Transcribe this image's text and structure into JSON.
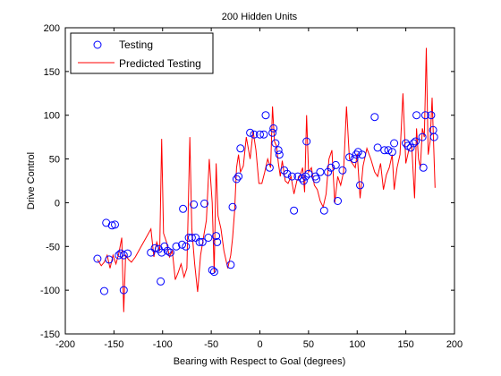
{
  "chart_data": {
    "type": "scatter",
    "title": "200 Hidden Units",
    "xlabel": "Bearing with Respect to Goal (degrees)",
    "ylabel": "Drive Control",
    "xlim": [
      -200,
      200
    ],
    "ylim": [
      -150,
      200
    ],
    "xticks": [
      "-200",
      "-150",
      "-100",
      "-50",
      "0",
      "50",
      "100",
      "150",
      "200"
    ],
    "yticks": [
      "-150",
      "-100",
      "-50",
      "0",
      "50",
      "100",
      "150",
      "200"
    ],
    "grid": false,
    "legend_position": "top-left",
    "colors": {
      "testing": "#0000ff",
      "predicted": "#ff0000"
    },
    "series": [
      {
        "name": "Testing",
        "style": "markers",
        "points": [
          [
            -167,
            -64
          ],
          [
            -160,
            -101
          ],
          [
            -158,
            -23
          ],
          [
            -155,
            -65
          ],
          [
            -152,
            -26
          ],
          [
            -149,
            -25
          ],
          [
            -145,
            -60
          ],
          [
            -143,
            -58
          ],
          [
            -140,
            -60
          ],
          [
            -140,
            -100
          ],
          [
            -136,
            -58
          ],
          [
            -112,
            -57
          ],
          [
            -108,
            -52
          ],
          [
            -104,
            -53
          ],
          [
            -102,
            -90
          ],
          [
            -101,
            -57
          ],
          [
            -98,
            -50
          ],
          [
            -95,
            -55
          ],
          [
            -92,
            -57
          ],
          [
            -86,
            -50
          ],
          [
            -80,
            -48
          ],
          [
            -79,
            -7
          ],
          [
            -76,
            -50
          ],
          [
            -73,
            -40
          ],
          [
            -70,
            -40
          ],
          [
            -68,
            -2
          ],
          [
            -66,
            -40
          ],
          [
            -62,
            -45
          ],
          [
            -59,
            -45
          ],
          [
            -57,
            -1
          ],
          [
            -53,
            -40
          ],
          [
            -49,
            -77
          ],
          [
            -47,
            -79
          ],
          [
            -45,
            -38
          ],
          [
            -44,
            -45
          ],
          [
            -30,
            -71
          ],
          [
            -28,
            -5
          ],
          [
            -24,
            27
          ],
          [
            -22,
            30
          ],
          [
            -20,
            62
          ],
          [
            -10,
            80
          ],
          [
            -6,
            78
          ],
          [
            0,
            78
          ],
          [
            4,
            78
          ],
          [
            6,
            100
          ],
          [
            10,
            40
          ],
          [
            13,
            80
          ],
          [
            14,
            85
          ],
          [
            16,
            68
          ],
          [
            19,
            60
          ],
          [
            20,
            55
          ],
          [
            25,
            37
          ],
          [
            28,
            33
          ],
          [
            33,
            30
          ],
          [
            35,
            -9
          ],
          [
            39,
            30
          ],
          [
            43,
            28
          ],
          [
            45,
            25
          ],
          [
            47,
            30
          ],
          [
            48,
            70
          ],
          [
            50,
            33
          ],
          [
            57,
            30
          ],
          [
            58,
            27
          ],
          [
            62,
            35
          ],
          [
            66,
            -9
          ],
          [
            70,
            35
          ],
          [
            73,
            40
          ],
          [
            78,
            43
          ],
          [
            80,
            2
          ],
          [
            85,
            37
          ],
          [
            92,
            52
          ],
          [
            97,
            50
          ],
          [
            99,
            55
          ],
          [
            101,
            58
          ],
          [
            103,
            20
          ],
          [
            105,
            55
          ],
          [
            118,
            98
          ],
          [
            121,
            63
          ],
          [
            128,
            60
          ],
          [
            132,
            60
          ],
          [
            136,
            58
          ],
          [
            138,
            68
          ],
          [
            150,
            68
          ],
          [
            152,
            65
          ],
          [
            155,
            63
          ],
          [
            158,
            68
          ],
          [
            160,
            70
          ],
          [
            161,
            100
          ],
          [
            167,
            75
          ],
          [
            168,
            40
          ],
          [
            170,
            100
          ],
          [
            176,
            100
          ],
          [
            178,
            83
          ],
          [
            179,
            75
          ]
        ]
      },
      {
        "name": "Predicted Testing",
        "style": "line",
        "points": [
          [
            -167,
            -65
          ],
          [
            -163,
            -72
          ],
          [
            -160,
            -68
          ],
          [
            -157,
            -60
          ],
          [
            -154,
            -75
          ],
          [
            -151,
            -60
          ],
          [
            -148,
            -70
          ],
          [
            -145,
            -58
          ],
          [
            -142,
            -40
          ],
          [
            -140,
            -125
          ],
          [
            -138,
            -60
          ],
          [
            -135,
            -65
          ],
          [
            -132,
            -68
          ],
          [
            -128,
            -62
          ],
          [
            -122,
            -50
          ],
          [
            -117,
            -40
          ],
          [
            -112,
            -30
          ],
          [
            -109,
            -62
          ],
          [
            -106,
            -45
          ],
          [
            -103,
            -55
          ],
          [
            -101,
            73
          ],
          [
            -99,
            -35
          ],
          [
            -96,
            -45
          ],
          [
            -93,
            -62
          ],
          [
            -90,
            -55
          ],
          [
            -87,
            -88
          ],
          [
            -84,
            -80
          ],
          [
            -81,
            -70
          ],
          [
            -78,
            -85
          ],
          [
            -75,
            -75
          ],
          [
            -72,
            75
          ],
          [
            -70,
            -30
          ],
          [
            -67,
            -70
          ],
          [
            -64,
            -102
          ],
          [
            -61,
            -60
          ],
          [
            -58,
            -40
          ],
          [
            -55,
            -20
          ],
          [
            -52,
            50
          ],
          [
            -49,
            0
          ],
          [
            -47,
            -80
          ],
          [
            -45,
            45
          ],
          [
            -43,
            -15
          ],
          [
            -40,
            -30
          ],
          [
            -37,
            -55
          ],
          [
            -33,
            -75
          ],
          [
            -30,
            -60
          ],
          [
            -28,
            -40
          ],
          [
            -26,
            -10
          ],
          [
            -24,
            40
          ],
          [
            -22,
            55
          ],
          [
            -20,
            35
          ],
          [
            -17,
            42
          ],
          [
            -14,
            75
          ],
          [
            -10,
            50
          ],
          [
            -7,
            82
          ],
          [
            -4,
            60
          ],
          [
            -1,
            22
          ],
          [
            2,
            22
          ],
          [
            5,
            35
          ],
          [
            8,
            50
          ],
          [
            11,
            40
          ],
          [
            13,
            110
          ],
          [
            15,
            70
          ],
          [
            17,
            65
          ],
          [
            19,
            45
          ],
          [
            21,
            30
          ],
          [
            23,
            48
          ],
          [
            26,
            25
          ],
          [
            29,
            22
          ],
          [
            32,
            30
          ],
          [
            35,
            10
          ],
          [
            38,
            25
          ],
          [
            41,
            30
          ],
          [
            44,
            40
          ],
          [
            46,
            12
          ],
          [
            48,
            100
          ],
          [
            50,
            35
          ],
          [
            53,
            40
          ],
          [
            56,
            20
          ],
          [
            59,
            15
          ],
          [
            62,
            2
          ],
          [
            65,
            -5
          ],
          [
            68,
            10
          ],
          [
            71,
            50
          ],
          [
            74,
            60
          ],
          [
            77,
            0
          ],
          [
            80,
            30
          ],
          [
            83,
            20
          ],
          [
            86,
            35
          ],
          [
            89,
            110
          ],
          [
            92,
            50
          ],
          [
            95,
            45
          ],
          [
            98,
            40
          ],
          [
            100,
            56
          ],
          [
            103,
            5
          ],
          [
            106,
            42
          ],
          [
            110,
            62
          ],
          [
            114,
            50
          ],
          [
            118,
            35
          ],
          [
            121,
            30
          ],
          [
            124,
            45
          ],
          [
            127,
            15
          ],
          [
            130,
            32
          ],
          [
            133,
            40
          ],
          [
            136,
            55
          ],
          [
            138,
            15
          ],
          [
            141,
            40
          ],
          [
            144,
            55
          ],
          [
            147,
            125
          ],
          [
            150,
            45
          ],
          [
            153,
            60
          ],
          [
            156,
            65
          ],
          [
            159,
            5
          ],
          [
            161,
            85
          ],
          [
            163,
            50
          ],
          [
            165,
            40
          ],
          [
            167,
            85
          ],
          [
            169,
            75
          ],
          [
            171,
            177
          ],
          [
            173,
            55
          ],
          [
            175,
            70
          ],
          [
            177,
            120
          ],
          [
            180,
            17
          ]
        ]
      }
    ]
  }
}
